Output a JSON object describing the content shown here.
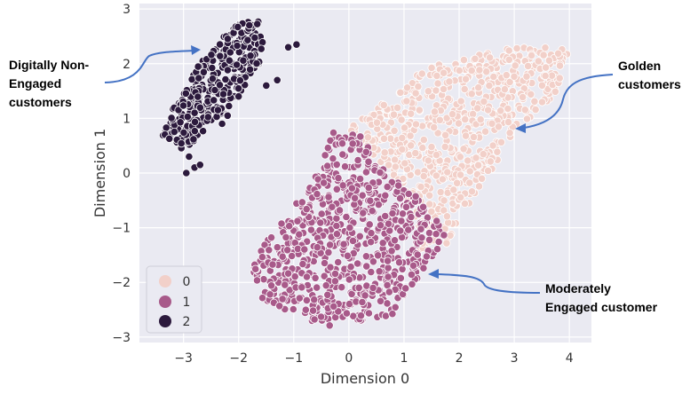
{
  "chart_data": {
    "type": "scatter",
    "title": "",
    "xlabel": "Dimension 0",
    "ylabel": "Dimension 1",
    "xlim": [
      -3.8,
      4.4
    ],
    "ylim": [
      -3.1,
      3.1
    ],
    "xticks": [
      "−3",
      "−2",
      "−1",
      "0",
      "1",
      "2",
      "3",
      "4"
    ],
    "xtick_values": [
      -3,
      -2,
      -1,
      0,
      1,
      2,
      3,
      4
    ],
    "yticks": [
      "3",
      "2",
      "1",
      "0",
      "−1",
      "−2",
      "−3"
    ],
    "ytick_values": [
      3,
      2,
      1,
      0,
      -1,
      -2,
      -3
    ],
    "grid": true,
    "background": "#eaeaf2",
    "legend": {
      "placement": "lower-left",
      "entries": [
        {
          "label": "0",
          "color": "#f2d0c9"
        },
        {
          "label": "1",
          "color": "#a85a8a"
        },
        {
          "label": "2",
          "color": "#2c1a3d"
        }
      ]
    },
    "series": [
      {
        "cluster": "0",
        "color": "#f2d0c9",
        "region": {
          "type": "polygon",
          "vertices": [
            [
              0.0,
              0.8
            ],
            [
              1.5,
              2.0
            ],
            [
              3.0,
              2.3
            ],
            [
              4.0,
              2.3
            ],
            [
              3.8,
              1.5
            ],
            [
              3.0,
              0.7
            ],
            [
              2.3,
              -0.4
            ],
            [
              1.8,
              -1.3
            ],
            [
              1.3,
              -1.4
            ],
            [
              1.0,
              -0.3
            ],
            [
              0.2,
              0.5
            ]
          ]
        },
        "count": 650
      },
      {
        "cluster": "1",
        "color": "#a85a8a",
        "region": {
          "type": "polygon",
          "vertices": [
            [
              -0.3,
              0.8
            ],
            [
              0.2,
              0.7
            ],
            [
              0.6,
              0.1
            ],
            [
              1.3,
              -0.5
            ],
            [
              1.8,
              -1.1
            ],
            [
              1.5,
              -1.6
            ],
            [
              0.8,
              -2.6
            ],
            [
              -0.4,
              -2.8
            ],
            [
              -1.0,
              -2.6
            ],
            [
              -1.6,
              -2.3
            ],
            [
              -1.8,
              -1.7
            ],
            [
              -1.4,
              -1.1
            ],
            [
              -1.0,
              -0.6
            ],
            [
              -0.5,
              0.1
            ]
          ]
        },
        "count": 700
      },
      {
        "cluster": "2",
        "color": "#2c1a3d",
        "region": {
          "type": "polygon",
          "vertices": [
            [
              -3.4,
              0.7
            ],
            [
              -3.0,
              0.4
            ],
            [
              -2.5,
              0.9
            ],
            [
              -2.1,
              1.3
            ],
            [
              -1.6,
              1.9
            ],
            [
              -1.5,
              2.7
            ],
            [
              -1.7,
              2.8
            ],
            [
              -2.1,
              2.7
            ],
            [
              -2.7,
              2.0
            ],
            [
              -3.1,
              1.4
            ]
          ]
        },
        "extra_points": [
          [
            -1.1,
            2.3
          ],
          [
            -0.95,
            2.35
          ],
          [
            -1.3,
            1.7
          ],
          [
            -2.8,
            0.1
          ],
          [
            -2.9,
            0.3
          ],
          [
            -2.7,
            0.15
          ],
          [
            -2.2,
            1.05
          ],
          [
            -2.3,
            0.9
          ],
          [
            -2.0,
            1.4
          ],
          [
            -1.5,
            1.6
          ],
          [
            -2.95,
            0.0
          ]
        ],
        "count": 320
      }
    ],
    "annotations": [
      {
        "id": "digitally",
        "lines": [
          "Digitally Non-",
          "Engaged",
          "customers"
        ]
      },
      {
        "id": "golden",
        "lines": [
          "Golden",
          "customers"
        ]
      },
      {
        "id": "moderate",
        "lines": [
          "Moderately",
          "Engaged customer"
        ]
      }
    ],
    "annotation_color": "#4472c4"
  }
}
